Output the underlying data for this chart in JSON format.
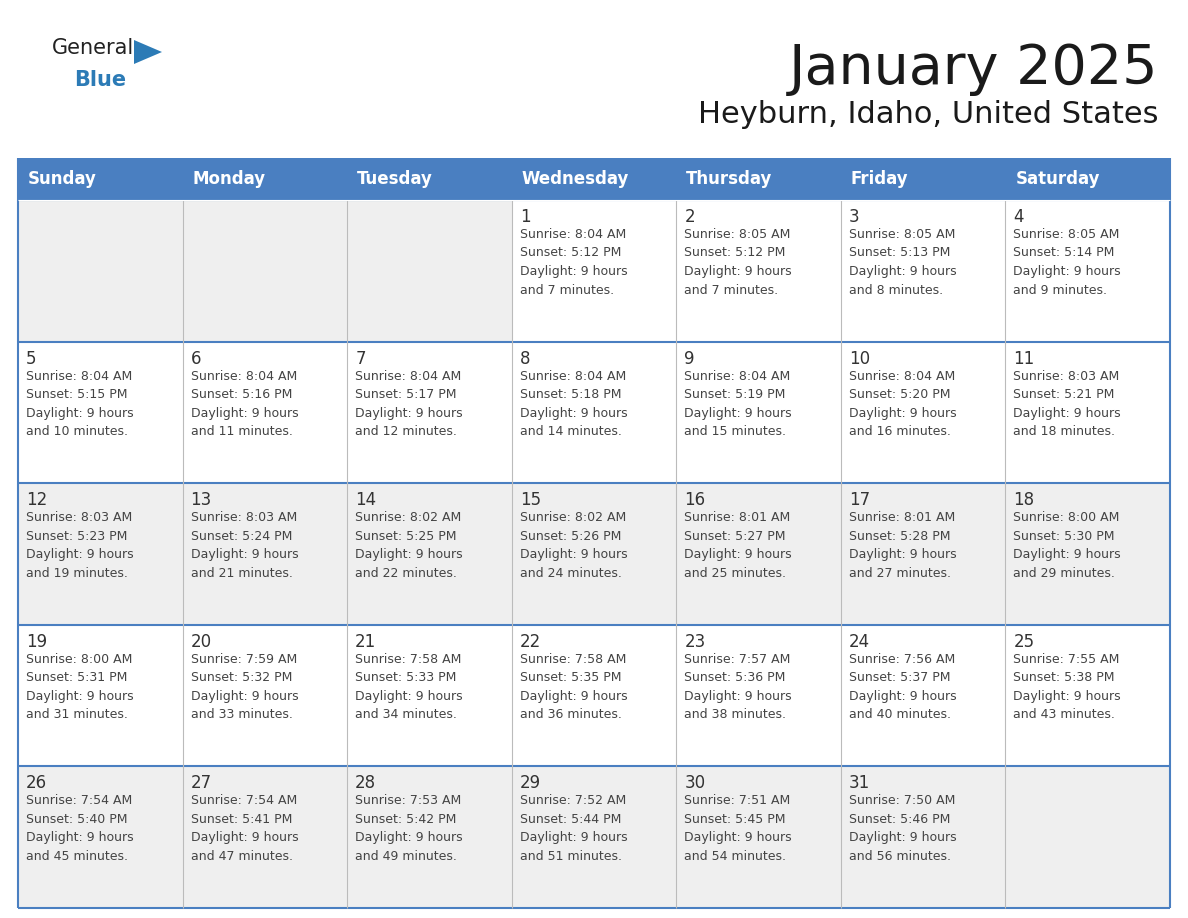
{
  "title": "January 2025",
  "subtitle": "Heyburn, Idaho, United States",
  "header_color": "#4a7fc1",
  "header_text_color": "#FFFFFF",
  "weekdays": [
    "Sunday",
    "Monday",
    "Tuesday",
    "Wednesday",
    "Thursday",
    "Friday",
    "Saturday"
  ],
  "bg_color": "#FFFFFF",
  "row_alt_color": "#EFEFEF",
  "border_color": "#4a7fc1",
  "col_divider_color": "#BBBBBB",
  "text_color": "#333333",
  "info_text_color": "#444444",
  "title_color": "#1a1a1a",
  "logo_general_color": "#222222",
  "logo_blue_color": "#2C7BB6",
  "logo_triangle_color": "#2C7BB6",
  "calendar_data": [
    [
      {
        "day": "",
        "info": ""
      },
      {
        "day": "",
        "info": ""
      },
      {
        "day": "",
        "info": ""
      },
      {
        "day": "1",
        "info": "Sunrise: 8:04 AM\nSunset: 5:12 PM\nDaylight: 9 hours\nand 7 minutes."
      },
      {
        "day": "2",
        "info": "Sunrise: 8:05 AM\nSunset: 5:12 PM\nDaylight: 9 hours\nand 7 minutes."
      },
      {
        "day": "3",
        "info": "Sunrise: 8:05 AM\nSunset: 5:13 PM\nDaylight: 9 hours\nand 8 minutes."
      },
      {
        "day": "4",
        "info": "Sunrise: 8:05 AM\nSunset: 5:14 PM\nDaylight: 9 hours\nand 9 minutes."
      }
    ],
    [
      {
        "day": "5",
        "info": "Sunrise: 8:04 AM\nSunset: 5:15 PM\nDaylight: 9 hours\nand 10 minutes."
      },
      {
        "day": "6",
        "info": "Sunrise: 8:04 AM\nSunset: 5:16 PM\nDaylight: 9 hours\nand 11 minutes."
      },
      {
        "day": "7",
        "info": "Sunrise: 8:04 AM\nSunset: 5:17 PM\nDaylight: 9 hours\nand 12 minutes."
      },
      {
        "day": "8",
        "info": "Sunrise: 8:04 AM\nSunset: 5:18 PM\nDaylight: 9 hours\nand 14 minutes."
      },
      {
        "day": "9",
        "info": "Sunrise: 8:04 AM\nSunset: 5:19 PM\nDaylight: 9 hours\nand 15 minutes."
      },
      {
        "day": "10",
        "info": "Sunrise: 8:04 AM\nSunset: 5:20 PM\nDaylight: 9 hours\nand 16 minutes."
      },
      {
        "day": "11",
        "info": "Sunrise: 8:03 AM\nSunset: 5:21 PM\nDaylight: 9 hours\nand 18 minutes."
      }
    ],
    [
      {
        "day": "12",
        "info": "Sunrise: 8:03 AM\nSunset: 5:23 PM\nDaylight: 9 hours\nand 19 minutes."
      },
      {
        "day": "13",
        "info": "Sunrise: 8:03 AM\nSunset: 5:24 PM\nDaylight: 9 hours\nand 21 minutes."
      },
      {
        "day": "14",
        "info": "Sunrise: 8:02 AM\nSunset: 5:25 PM\nDaylight: 9 hours\nand 22 minutes."
      },
      {
        "day": "15",
        "info": "Sunrise: 8:02 AM\nSunset: 5:26 PM\nDaylight: 9 hours\nand 24 minutes."
      },
      {
        "day": "16",
        "info": "Sunrise: 8:01 AM\nSunset: 5:27 PM\nDaylight: 9 hours\nand 25 minutes."
      },
      {
        "day": "17",
        "info": "Sunrise: 8:01 AM\nSunset: 5:28 PM\nDaylight: 9 hours\nand 27 minutes."
      },
      {
        "day": "18",
        "info": "Sunrise: 8:00 AM\nSunset: 5:30 PM\nDaylight: 9 hours\nand 29 minutes."
      }
    ],
    [
      {
        "day": "19",
        "info": "Sunrise: 8:00 AM\nSunset: 5:31 PM\nDaylight: 9 hours\nand 31 minutes."
      },
      {
        "day": "20",
        "info": "Sunrise: 7:59 AM\nSunset: 5:32 PM\nDaylight: 9 hours\nand 33 minutes."
      },
      {
        "day": "21",
        "info": "Sunrise: 7:58 AM\nSunset: 5:33 PM\nDaylight: 9 hours\nand 34 minutes."
      },
      {
        "day": "22",
        "info": "Sunrise: 7:58 AM\nSunset: 5:35 PM\nDaylight: 9 hours\nand 36 minutes."
      },
      {
        "day": "23",
        "info": "Sunrise: 7:57 AM\nSunset: 5:36 PM\nDaylight: 9 hours\nand 38 minutes."
      },
      {
        "day": "24",
        "info": "Sunrise: 7:56 AM\nSunset: 5:37 PM\nDaylight: 9 hours\nand 40 minutes."
      },
      {
        "day": "25",
        "info": "Sunrise: 7:55 AM\nSunset: 5:38 PM\nDaylight: 9 hours\nand 43 minutes."
      }
    ],
    [
      {
        "day": "26",
        "info": "Sunrise: 7:54 AM\nSunset: 5:40 PM\nDaylight: 9 hours\nand 45 minutes."
      },
      {
        "day": "27",
        "info": "Sunrise: 7:54 AM\nSunset: 5:41 PM\nDaylight: 9 hours\nand 47 minutes."
      },
      {
        "day": "28",
        "info": "Sunrise: 7:53 AM\nSunset: 5:42 PM\nDaylight: 9 hours\nand 49 minutes."
      },
      {
        "day": "29",
        "info": "Sunrise: 7:52 AM\nSunset: 5:44 PM\nDaylight: 9 hours\nand 51 minutes."
      },
      {
        "day": "30",
        "info": "Sunrise: 7:51 AM\nSunset: 5:45 PM\nDaylight: 9 hours\nand 54 minutes."
      },
      {
        "day": "31",
        "info": "Sunrise: 7:50 AM\nSunset: 5:46 PM\nDaylight: 9 hours\nand 56 minutes."
      },
      {
        "day": "",
        "info": ""
      }
    ]
  ]
}
